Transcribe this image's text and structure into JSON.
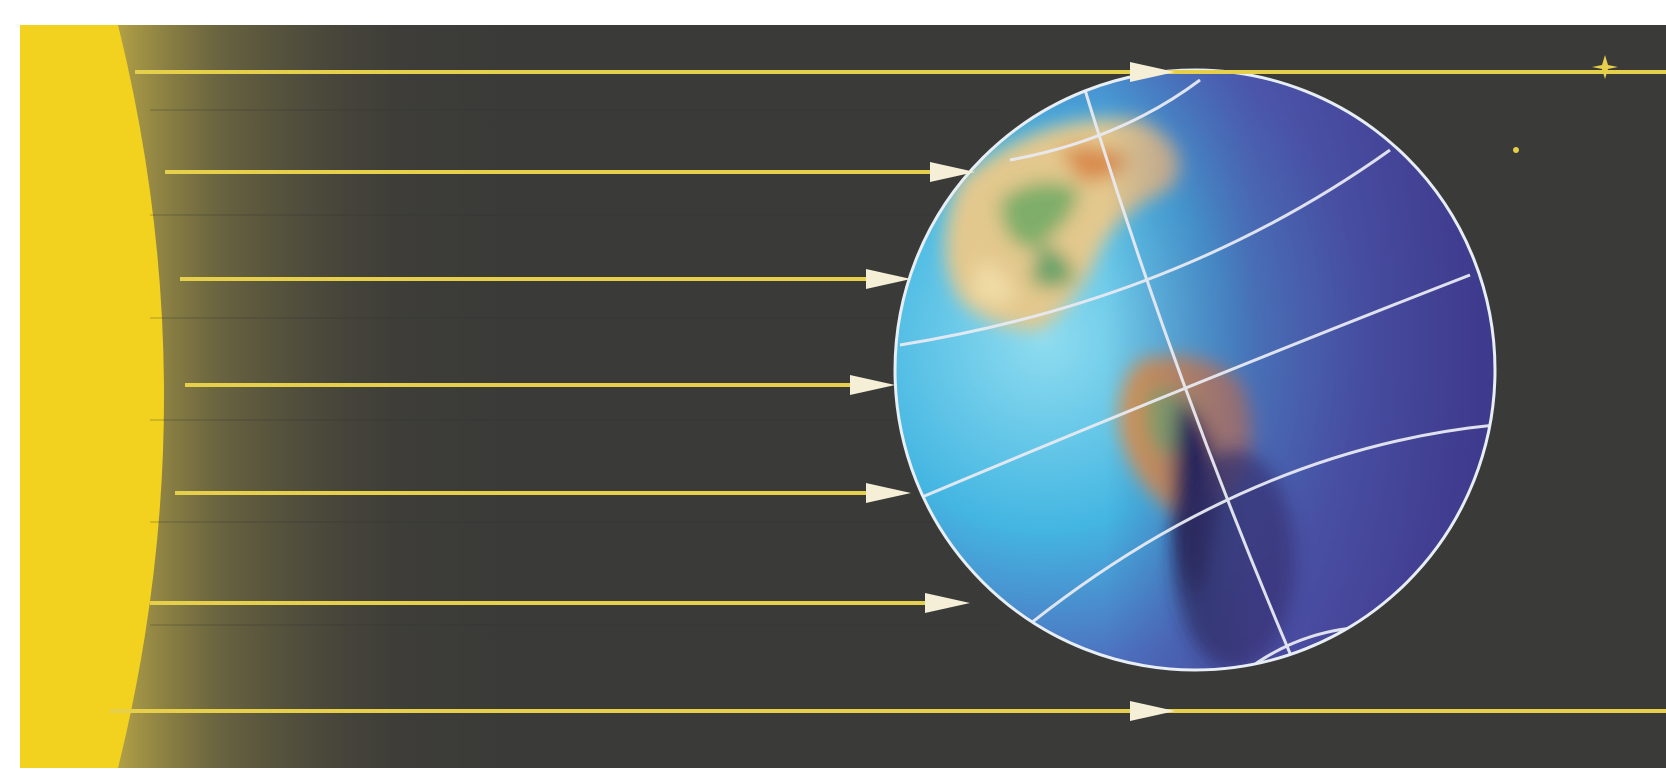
{
  "diagram": {
    "subject": "sunlight-rays-reaching-earth",
    "rays": {
      "count": 7,
      "color": "#e6cf4a",
      "arrowhead_color": "#f4efd6"
    },
    "colors": {
      "background": "#3a3a38",
      "sun": "#f2d21e",
      "sun_glow": "#e8d040",
      "globe_outline": "#e8eef5",
      "graticule": "#e8eaf2",
      "ocean_light": "#5fc7e8",
      "ocean_dark": "#4a4fa8",
      "night_side": "#3b3f8c",
      "land_light": "#e7c98a",
      "land_green": "#7fae6a",
      "land_orange": "#d98a4b",
      "frame": "#ffffff"
    }
  }
}
